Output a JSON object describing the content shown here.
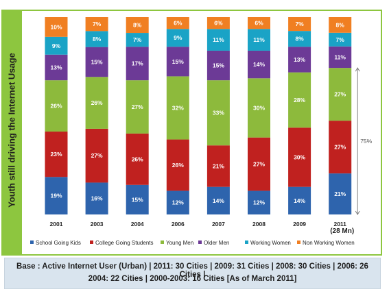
{
  "side_title": "Youth still driving the Internet Usage",
  "chart_data": {
    "type": "bar",
    "stacked": true,
    "percent_stacked": true,
    "categories": [
      "2001",
      "2003",
      "2004",
      "2006",
      "2007",
      "2008",
      "2009",
      "2011"
    ],
    "category_sublabels": [
      "",
      "",
      "",
      "",
      "",
      "",
      "",
      "(28 Mn)"
    ],
    "series": [
      {
        "name": "School Going Kids",
        "color": "#2e64ad",
        "values": [
          19,
          16,
          15,
          12,
          14,
          12,
          14,
          21
        ]
      },
      {
        "name": "College Going Students",
        "color": "#c0211f",
        "values": [
          23,
          27,
          26,
          26,
          21,
          27,
          30,
          27
        ]
      },
      {
        "name": "Young Men",
        "color": "#8dba3c",
        "values": [
          26,
          26,
          27,
          32,
          33,
          30,
          28,
          27
        ]
      },
      {
        "name": "Older Men",
        "color": "#6c3a96",
        "values": [
          13,
          15,
          17,
          15,
          15,
          14,
          13,
          11
        ]
      },
      {
        "name": "Working Women",
        "color": "#1aa3c6",
        "values": [
          9,
          8,
          7,
          9,
          11,
          11,
          8,
          7
        ]
      },
      {
        "name": "Non Working Women",
        "color": "#f07f22",
        "values": [
          10,
          7,
          8,
          6,
          6,
          6,
          7,
          8
        ]
      }
    ],
    "data_label_suffix": "%",
    "annotation": {
      "label": "75%",
      "category": "2011"
    },
    "legend_position": "bottom",
    "grid": false
  },
  "footer": {
    "line1": "Base : Active Internet User (Urban) | 2011: 30 Cities | 2009: 31 Cities | 2008: 30 Cities | 2006: 26 Cities |",
    "line2": "2004: 22 Cities | 2000-2003: 16 Cities [As of March 2011]"
  }
}
